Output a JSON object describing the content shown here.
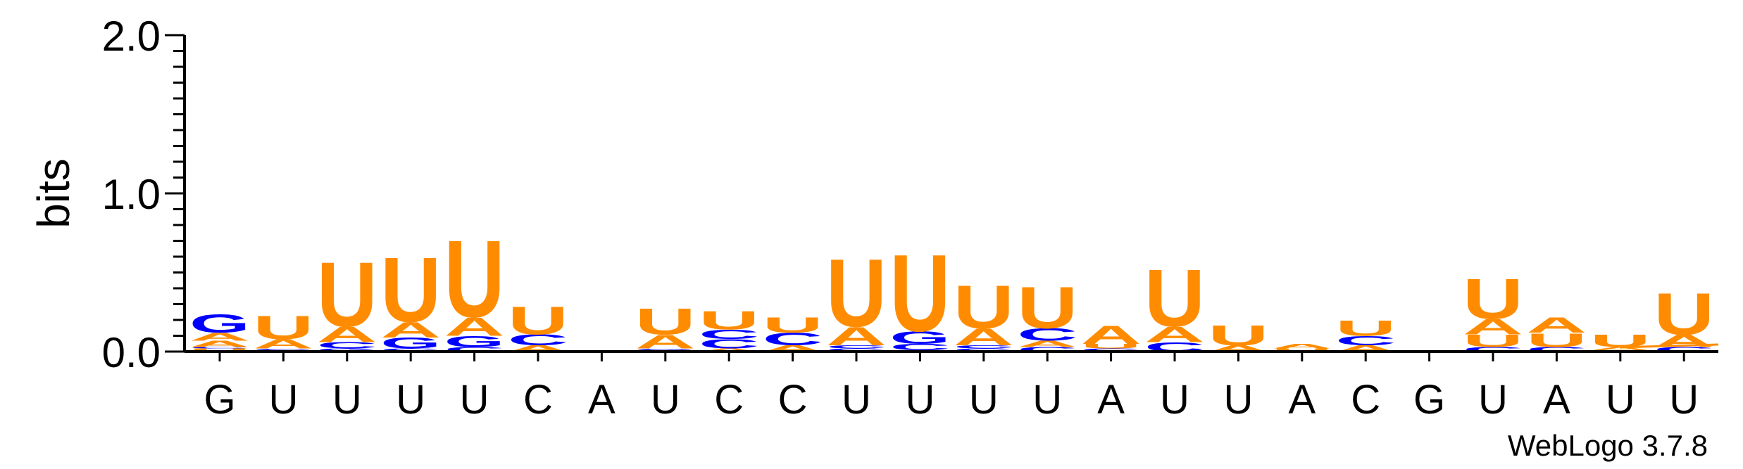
{
  "chart_data": {
    "type": "sequence-logo",
    "ylabel": "bits",
    "ylim": [
      0,
      2.0
    ],
    "yticks": [
      "0.0",
      "1.0",
      "2.0"
    ],
    "xlabels": [
      "G",
      "U",
      "U",
      "U",
      "U",
      "C",
      "A",
      "U",
      "C",
      "C",
      "U",
      "U",
      "U",
      "U",
      "A",
      "U",
      "U",
      "A",
      "C",
      "G",
      "U",
      "A",
      "U",
      "U"
    ],
    "credit": "WebLogo 3.7.8",
    "colors": {
      "A": "#ff8c00",
      "U": "#ff8c00",
      "C": "#0000ff",
      "G": "#0000ff"
    },
    "positions": [
      [
        [
          "U",
          0.02
        ],
        [
          "C",
          0.01
        ],
        [
          "A",
          0.04
        ],
        [
          "A",
          0.05
        ],
        [
          "G",
          0.12
        ]
      ],
      [
        [
          "G",
          0.01
        ],
        [
          "C",
          0.01
        ],
        [
          "A",
          0.06
        ],
        [
          "U",
          0.15
        ]
      ],
      [
        [
          "G",
          0.02
        ],
        [
          "C",
          0.04
        ],
        [
          "A",
          0.1
        ],
        [
          "U",
          0.42
        ]
      ],
      [
        [
          "C",
          0.02
        ],
        [
          "G",
          0.07
        ],
        [
          "A",
          0.1
        ],
        [
          "U",
          0.42
        ]
      ],
      [
        [
          "C",
          0.03
        ],
        [
          "G",
          0.07
        ],
        [
          "A",
          0.12
        ],
        [
          "U",
          0.5
        ]
      ],
      [
        [
          "A",
          0.04
        ],
        [
          "C",
          0.07
        ],
        [
          "U",
          0.18
        ]
      ],
      [],
      [
        [
          "C",
          0.01
        ],
        [
          "G",
          0.01
        ],
        [
          "A",
          0.09
        ],
        [
          "U",
          0.17
        ]
      ],
      [
        [
          "A",
          0.02
        ],
        [
          "C",
          0.06
        ],
        [
          "C",
          0.06
        ],
        [
          "U",
          0.12
        ]
      ],
      [
        [
          "A",
          0.04
        ],
        [
          "C",
          0.08
        ],
        [
          "U",
          0.1
        ]
      ],
      [
        [
          "C",
          0.02
        ],
        [
          "C",
          0.02
        ],
        [
          "A",
          0.12
        ],
        [
          "U",
          0.44
        ]
      ],
      [
        [
          "A",
          0.01
        ],
        [
          "C",
          0.04
        ],
        [
          "G",
          0.08
        ],
        [
          "U",
          0.5
        ]
      ],
      [
        [
          "C",
          0.02
        ],
        [
          "C",
          0.02
        ],
        [
          "A",
          0.11
        ],
        [
          "U",
          0.28
        ]
      ],
      [
        [
          "C",
          0.03
        ],
        [
          "A",
          0.04
        ],
        [
          "C",
          0.08
        ],
        [
          "U",
          0.27
        ]
      ],
      [
        [
          "C",
          0.02
        ],
        [
          "U",
          0.03
        ],
        [
          "A",
          0.12
        ]
      ],
      [
        [
          "C",
          0.06
        ],
        [
          "A",
          0.1
        ],
        [
          "U",
          0.37
        ]
      ],
      [
        [
          "A",
          0.04
        ],
        [
          "U",
          0.13
        ]
      ],
      [
        [
          "U",
          0.02
        ],
        [
          "A",
          0.03
        ]
      ],
      [
        [
          "A",
          0.04
        ],
        [
          "C",
          0.06
        ],
        [
          "U",
          0.1
        ]
      ],
      [],
      [
        [
          "C",
          0.03
        ],
        [
          "U",
          0.08
        ],
        [
          "A",
          0.1
        ],
        [
          "U",
          0.26
        ]
      ],
      [
        [
          "C",
          0.03
        ],
        [
          "U",
          0.09
        ],
        [
          "A",
          0.1
        ]
      ],
      [
        [
          "C",
          0.01
        ],
        [
          "A",
          0.02
        ],
        [
          "U",
          0.08
        ]
      ],
      [
        [
          "C",
          0.03
        ],
        [
          "A",
          0.08
        ],
        [
          "U",
          0.27
        ]
      ]
    ]
  }
}
